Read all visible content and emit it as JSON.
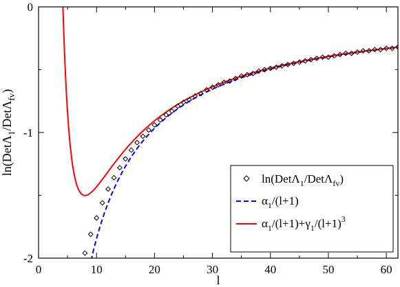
{
  "chart_data": {
    "type": "line",
    "title": "",
    "xlabel": "l",
    "ylabel": "ln(DetΛ1/DetΛfv)",
    "xlim": [
      0,
      62
    ],
    "ylim": [
      -2,
      0
    ],
    "x_ticks": [
      0,
      10,
      20,
      30,
      40,
      50,
      60
    ],
    "y_ticks": [
      0,
      -1,
      -2
    ],
    "grid": false,
    "legend_position": "bottom-right",
    "series": [
      {
        "name": "ln(DetΛ1/DetΛfv)",
        "style": "markers",
        "marker": "diamond",
        "color": "#000000",
        "points": [
          [
            8,
            -1.96
          ],
          [
            9,
            -1.81
          ],
          [
            10,
            -1.68
          ],
          [
            11,
            -1.56
          ],
          [
            12,
            -1.45
          ],
          [
            13,
            -1.36
          ],
          [
            14,
            -1.28
          ],
          [
            15,
            -1.21
          ],
          [
            16,
            -1.14
          ],
          [
            17,
            -1.08
          ],
          [
            18,
            -1.03
          ],
          [
            19,
            -0.98
          ],
          [
            20,
            -0.94
          ],
          [
            21,
            -0.9
          ],
          [
            22,
            -0.86
          ],
          [
            23,
            -0.83
          ],
          [
            24,
            -0.79
          ],
          [
            25,
            -0.76
          ],
          [
            26,
            -0.74
          ],
          [
            27,
            -0.71
          ],
          [
            28,
            -0.69
          ],
          [
            29,
            -0.66
          ],
          [
            30,
            -0.64
          ],
          [
            31,
            -0.62
          ],
          [
            32,
            -0.6
          ],
          [
            33,
            -0.59
          ],
          [
            34,
            -0.57
          ],
          [
            35,
            -0.55
          ],
          [
            36,
            -0.54
          ],
          [
            37,
            -0.53
          ],
          [
            38,
            -0.51
          ],
          [
            39,
            -0.5
          ],
          [
            40,
            -0.49
          ],
          [
            41,
            -0.48
          ],
          [
            42,
            -0.47
          ],
          [
            43,
            -0.46
          ],
          [
            44,
            -0.45
          ],
          [
            45,
            -0.44
          ],
          [
            46,
            -0.43
          ],
          [
            47,
            -0.42
          ],
          [
            48,
            -0.41
          ],
          [
            49,
            -0.4
          ],
          [
            50,
            -0.4
          ],
          [
            51,
            -0.39
          ],
          [
            52,
            -0.38
          ],
          [
            53,
            -0.37
          ],
          [
            54,
            -0.37
          ],
          [
            55,
            -0.36
          ],
          [
            56,
            -0.35
          ],
          [
            57,
            -0.35
          ],
          [
            58,
            -0.34
          ],
          [
            59,
            -0.34
          ],
          [
            60,
            -0.33
          ],
          [
            61,
            -0.33
          ],
          [
            62,
            -0.32
          ]
        ]
      },
      {
        "name": "α1/(l+1)",
        "style": "dashed",
        "color": "#0000ff",
        "alpha": -20.3
      },
      {
        "name": "α1/(l+1)+γ1/(l+1)^3",
        "style": "solid",
        "color": "#ff0000",
        "alpha": -20.3,
        "gamma": 550
      }
    ],
    "legend": {
      "entries": [
        {
          "text": "ln(DetΛ",
          "sub1": "1",
          "mid": "/DetΛ",
          "sub2": "fv",
          "end": ")"
        },
        {
          "text": "α",
          "sub1": "1",
          "mid": "/(l+1)",
          "sub2": "",
          "end": ""
        },
        {
          "text": "α",
          "sub1": "1",
          "mid": "/(l+1)+γ",
          "sub2": "1",
          "end": "/(l+1)",
          "sup": "3"
        }
      ]
    },
    "ylabel_parts": {
      "a": "ln(DetΛ",
      "b": "1",
      "c": "/DetΛ",
      "d": "fv",
      "e": ")"
    }
  }
}
